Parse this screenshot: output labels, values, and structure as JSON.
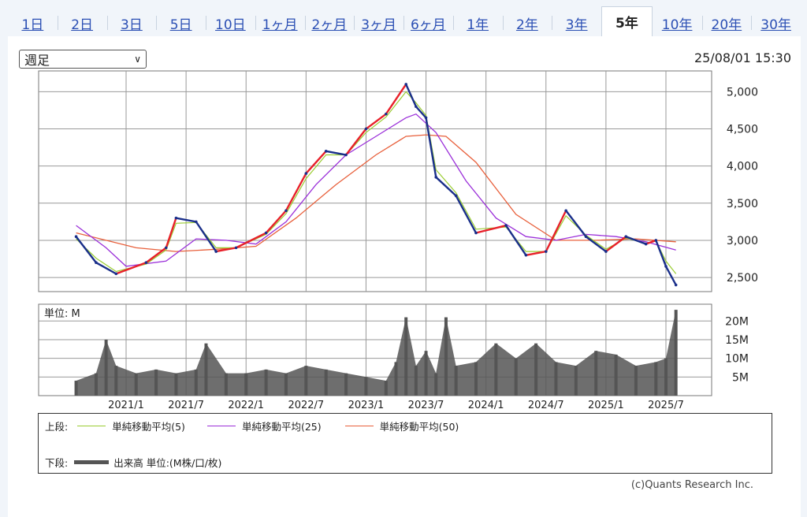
{
  "periods": [
    "1日",
    "2日",
    "3日",
    "5日",
    "10日",
    "1ヶ月",
    "2ヶ月",
    "3ヶ月",
    "6ヶ月",
    "1年",
    "2年",
    "3年",
    "5年",
    "10年",
    "20年",
    "30年"
  ],
  "active_period": "5年",
  "select": {
    "value": "週足"
  },
  "timestamp": "25/08/01 15:30",
  "credit": "(c)Quants Research Inc.",
  "legend": {
    "upper_label": "上段:",
    "ma5_label": "単純移動平均(5)",
    "ma25_label": "単純移動平均(25)",
    "ma50_label": "単純移動平均(50)",
    "lower_label": "下段:",
    "volume_label": "出来高 単位:(M株/口/枚)"
  },
  "colors": {
    "up": "#e8202a",
    "down": "#1a2f8a",
    "ma5": "#9acd32",
    "ma25": "#9b30d9",
    "ma50": "#e8603c",
    "volume": "#555555",
    "grid": "#999999"
  },
  "chart_data": [
    {
      "type": "line",
      "title": "price",
      "x_ticks": [
        "2021/1",
        "2021/7",
        "2022/1",
        "2022/7",
        "2023/1",
        "2023/7",
        "2024/1",
        "2024/7",
        "2025/1",
        "2025/7"
      ],
      "y_ticks": [
        2500,
        3000,
        3500,
        4000,
        4500,
        5000
      ],
      "y_tick_labels": [
        "2,500",
        "3,000",
        "3,500",
        "4,000",
        "4,500",
        "5,000"
      ],
      "ylim": [
        2310,
        5280
      ],
      "grid": true,
      "series": [
        {
          "name": "price",
          "x": [
            "2020/8",
            "2020/10",
            "2020/12",
            "2021/3",
            "2021/5",
            "2021/6",
            "2021/8",
            "2021/10",
            "2021/12",
            "2022/3",
            "2022/5",
            "2022/7",
            "2022/9",
            "2022/11",
            "2023/1",
            "2023/3",
            "2023/5",
            "2023/6",
            "2023/7",
            "2023/8",
            "2023/10",
            "2023/12",
            "2024/3",
            "2024/5",
            "2024/7",
            "2024/9",
            "2024/11",
            "2025/1",
            "2025/3",
            "2025/5",
            "2025/6",
            "2025/7",
            "2025/8"
          ],
          "values": [
            3050,
            2700,
            2550,
            2700,
            2900,
            3300,
            3250,
            2850,
            2900,
            3100,
            3400,
            3900,
            4200,
            4150,
            4500,
            4700,
            5100,
            4800,
            4650,
            3850,
            3600,
            3100,
            3200,
            2800,
            2850,
            3400,
            3050,
            2850,
            3050,
            2950,
            3000,
            2650,
            2400
          ]
        },
        {
          "name": "単純移動平均(5)",
          "x": [
            "2020/8",
            "2020/10",
            "2020/12",
            "2021/3",
            "2021/5",
            "2021/6",
            "2021/8",
            "2021/10",
            "2021/12",
            "2022/3",
            "2022/5",
            "2022/7",
            "2022/9",
            "2022/11",
            "2023/1",
            "2023/3",
            "2023/5",
            "2023/6",
            "2023/7",
            "2023/8",
            "2023/10",
            "2023/12",
            "2024/3",
            "2024/5",
            "2024/7",
            "2024/9",
            "2024/11",
            "2025/1",
            "2025/3",
            "2025/5",
            "2025/6",
            "2025/7",
            "2025/8"
          ],
          "values": [
            3020,
            2760,
            2580,
            2680,
            2870,
            3230,
            3240,
            2900,
            2900,
            3080,
            3360,
            3830,
            4150,
            4150,
            4450,
            4660,
            5000,
            4850,
            4680,
            3950,
            3640,
            3150,
            3180,
            2850,
            2850,
            3330,
            3070,
            2880,
            3030,
            2960,
            2990,
            2720,
            2550
          ]
        },
        {
          "name": "単純移動平均(25)",
          "x": [
            "2020/8",
            "2020/11",
            "2021/1",
            "2021/5",
            "2021/8",
            "2021/11",
            "2022/2",
            "2022/5",
            "2022/8",
            "2022/11",
            "2023/2",
            "2023/5",
            "2023/6",
            "2023/8",
            "2023/11",
            "2024/2",
            "2024/5",
            "2024/8",
            "2024/11",
            "2025/2",
            "2025/5",
            "2025/8"
          ],
          "values": [
            3200,
            2900,
            2650,
            2720,
            3020,
            3000,
            2950,
            3250,
            3750,
            4150,
            4400,
            4650,
            4700,
            4450,
            3800,
            3300,
            3050,
            3000,
            3080,
            3050,
            2980,
            2870
          ]
        },
        {
          "name": "単純移動平均(50)",
          "x": [
            "2020/8",
            "2020/11",
            "2021/2",
            "2021/6",
            "2021/10",
            "2022/2",
            "2022/6",
            "2022/10",
            "2023/2",
            "2023/5",
            "2023/7",
            "2023/9",
            "2023/12",
            "2024/4",
            "2024/8",
            "2024/12",
            "2025/4",
            "2025/8"
          ],
          "values": [
            3100,
            3000,
            2900,
            2850,
            2880,
            2920,
            3300,
            3750,
            4150,
            4400,
            4420,
            4400,
            4050,
            3350,
            3000,
            3000,
            3020,
            2980
          ]
        }
      ]
    },
    {
      "type": "bar",
      "title": "volume",
      "unit_label": "単位: M",
      "y_ticks": [
        5,
        10,
        15,
        20
      ],
      "y_tick_labels": [
        "5M",
        "10M",
        "15M",
        "20M"
      ],
      "ylim": [
        0,
        24.5
      ],
      "grid": true,
      "series": [
        {
          "name": "出来高",
          "x": [
            "2020/8",
            "2020/10",
            "2020/11",
            "2020/12",
            "2021/2",
            "2021/4",
            "2021/6",
            "2021/8",
            "2021/9",
            "2021/11",
            "2022/1",
            "2022/3",
            "2022/5",
            "2022/7",
            "2022/9",
            "2022/11",
            "2023/1",
            "2023/3",
            "2023/4",
            "2023/5",
            "2023/6",
            "2023/7",
            "2023/8",
            "2023/9",
            "2023/10",
            "2023/12",
            "2024/2",
            "2024/4",
            "2024/6",
            "2024/8",
            "2024/10",
            "2024/12",
            "2025/2",
            "2025/4",
            "2025/6",
            "2025/7",
            "2025/8"
          ],
          "values": [
            4,
            6,
            15,
            8,
            6,
            7,
            6,
            7,
            14,
            6,
            6,
            7,
            6,
            8,
            7,
            6,
            5,
            4,
            9,
            21,
            8,
            12,
            6,
            21,
            8,
            9,
            14,
            10,
            14,
            9,
            8,
            12,
            11,
            8,
            9,
            10,
            23
          ]
        }
      ]
    }
  ]
}
